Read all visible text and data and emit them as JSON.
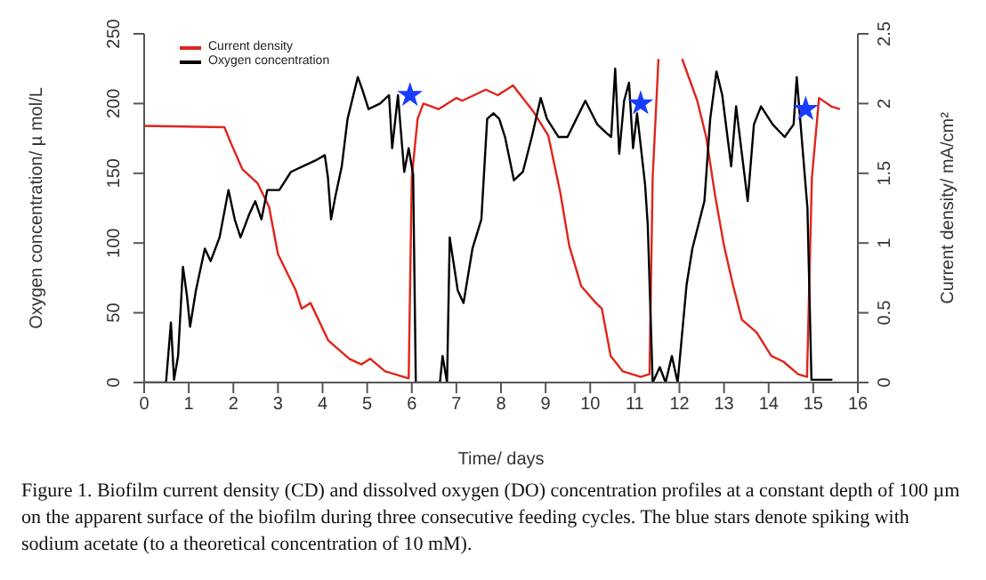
{
  "chart_data": {
    "type": "line",
    "xlabel": "Time/ days",
    "ylabel": "Oxygen concentration/ µ mol/L",
    "y2label": "Current density/ mA/cm²",
    "xlim": [
      0,
      16
    ],
    "xticks": [
      0,
      1,
      2,
      3,
      4,
      5,
      6,
      7,
      8,
      9,
      10,
      11,
      12,
      13,
      14,
      15,
      16
    ],
    "ylim": [
      0,
      250
    ],
    "yticks": [
      0,
      50,
      100,
      150,
      200,
      250
    ],
    "y2lim": [
      0,
      2.5
    ],
    "y2ticks": [
      0,
      0.5,
      1,
      1.5,
      2,
      2.5
    ],
    "grid": false,
    "legend": "top left",
    "marker": "none",
    "line_style": "solid",
    "series": [
      {
        "name": "Current density",
        "color": "#e0241b",
        "axis": "y2",
        "x": [
          0,
          1.8,
          1.94,
          2.2,
          2.54,
          2.8,
          3.0,
          3.4,
          3.53,
          3.73,
          4.13,
          4.6,
          4.87,
          5.07,
          5.4,
          5.93,
          6.0,
          6.13,
          6.26,
          6.6,
          7.0,
          7.13,
          7.66,
          7.93,
          8.27,
          8.73,
          9.06,
          9.33,
          9.53,
          9.8,
          10.13,
          10.26,
          10.46,
          10.73,
          11.13,
          11.33,
          11.4,
          11.53,
          11.66,
          11.86,
          12.06,
          12.4,
          12.6,
          12.8,
          13.0,
          13.2,
          13.4,
          13.73,
          14.06,
          14.33,
          14.66,
          14.86,
          14.97,
          15.13,
          15.4,
          15.6
        ],
        "values": [
          1.84,
          1.83,
          1.72,
          1.53,
          1.43,
          1.26,
          0.92,
          0.66,
          0.53,
          0.57,
          0.3,
          0.17,
          0.13,
          0.17,
          0.08,
          0.03,
          1.47,
          1.89,
          2.0,
          1.96,
          2.04,
          2.02,
          2.1,
          2.06,
          2.13,
          1.94,
          1.77,
          1.36,
          0.98,
          0.69,
          0.57,
          0.53,
          0.19,
          0.08,
          0.04,
          0.06,
          1.47,
          2.32,
          null,
          null,
          2.32,
          2.02,
          1.76,
          1.34,
          0.98,
          0.7,
          0.45,
          0.36,
          0.19,
          0.15,
          0.06,
          0.04,
          1.47,
          2.04,
          1.98,
          1.96
        ]
      },
      {
        "name": "Oxygen concentration",
        "color": "#000000",
        "x": [
          0,
          0.49,
          0.6,
          0.67,
          0.76,
          0.87,
          0.96,
          1.03,
          1.16,
          1.36,
          1.49,
          1.69,
          1.89,
          2.03,
          2.16,
          2.36,
          2.49,
          2.63,
          2.76,
          3.03,
          3.29,
          3.56,
          3.83,
          4.05,
          4.12,
          4.19,
          4.29,
          4.43,
          4.56,
          4.69,
          4.79,
          4.89,
          5.03,
          5.29,
          5.49,
          5.56,
          5.69,
          5.83,
          5.93,
          6.03,
          6.09,
          6.63,
          6.69,
          6.79,
          6.85,
          7.03,
          7.16,
          7.36,
          7.56,
          7.69,
          7.83,
          7.96,
          8.09,
          8.29,
          8.49,
          8.69,
          8.89,
          9.03,
          9.29,
          9.49,
          9.69,
          9.89,
          10.16,
          10.36,
          10.47,
          10.56,
          10.65,
          10.76,
          10.87,
          10.96,
          11.05,
          11.23,
          11.29,
          11.4,
          11.56,
          11.69,
          11.83,
          11.96,
          12.16,
          12.29,
          12.56,
          12.69,
          12.83,
          12.96,
          13.16,
          13.27,
          13.4,
          13.53,
          13.67,
          13.83,
          14.09,
          14.36,
          14.56,
          14.63,
          14.76,
          14.87,
          14.96,
          15.43
        ],
        "values": [
          0,
          0,
          43,
          2,
          19,
          83,
          62,
          40,
          66,
          96,
          87,
          104,
          138,
          117,
          104,
          121,
          130,
          117,
          138,
          138,
          151,
          155,
          159,
          163,
          147,
          117,
          134,
          155,
          189,
          206,
          219,
          210,
          196,
          200,
          206,
          168,
          206,
          151,
          168,
          149,
          0,
          0,
          19,
          0,
          104,
          66,
          57,
          96,
          117,
          189,
          193,
          189,
          176,
          145,
          151,
          176,
          204,
          189,
          176,
          176,
          189,
          202,
          185,
          179,
          176,
          225,
          164,
          202,
          215,
          168,
          193,
          142,
          113,
          0,
          11,
          0,
          19,
          0,
          70,
          96,
          130,
          189,
          223,
          206,
          155,
          198,
          164,
          130,
          185,
          198,
          185,
          176,
          185,
          219,
          168,
          125,
          2,
          2
        ]
      },
      {
        "type": "scatter",
        "marker": "star",
        "color": "#1a3cff",
        "x": [
          5.96,
          11.13,
          14.83
        ],
        "values": [
          206,
          200,
          196
        ]
      }
    ],
    "annotations": [
      "Figure 1. Biofilm current density (CD) and dissolved oxygen (DO) concentration profiles at a constant depth of 100 µm on the apparent surface of the biofilm during three consecutive feeding cycles. The blue stars denote spiking with sodium acetate (to a theoretical concentration of 10 mM)."
    ]
  }
}
